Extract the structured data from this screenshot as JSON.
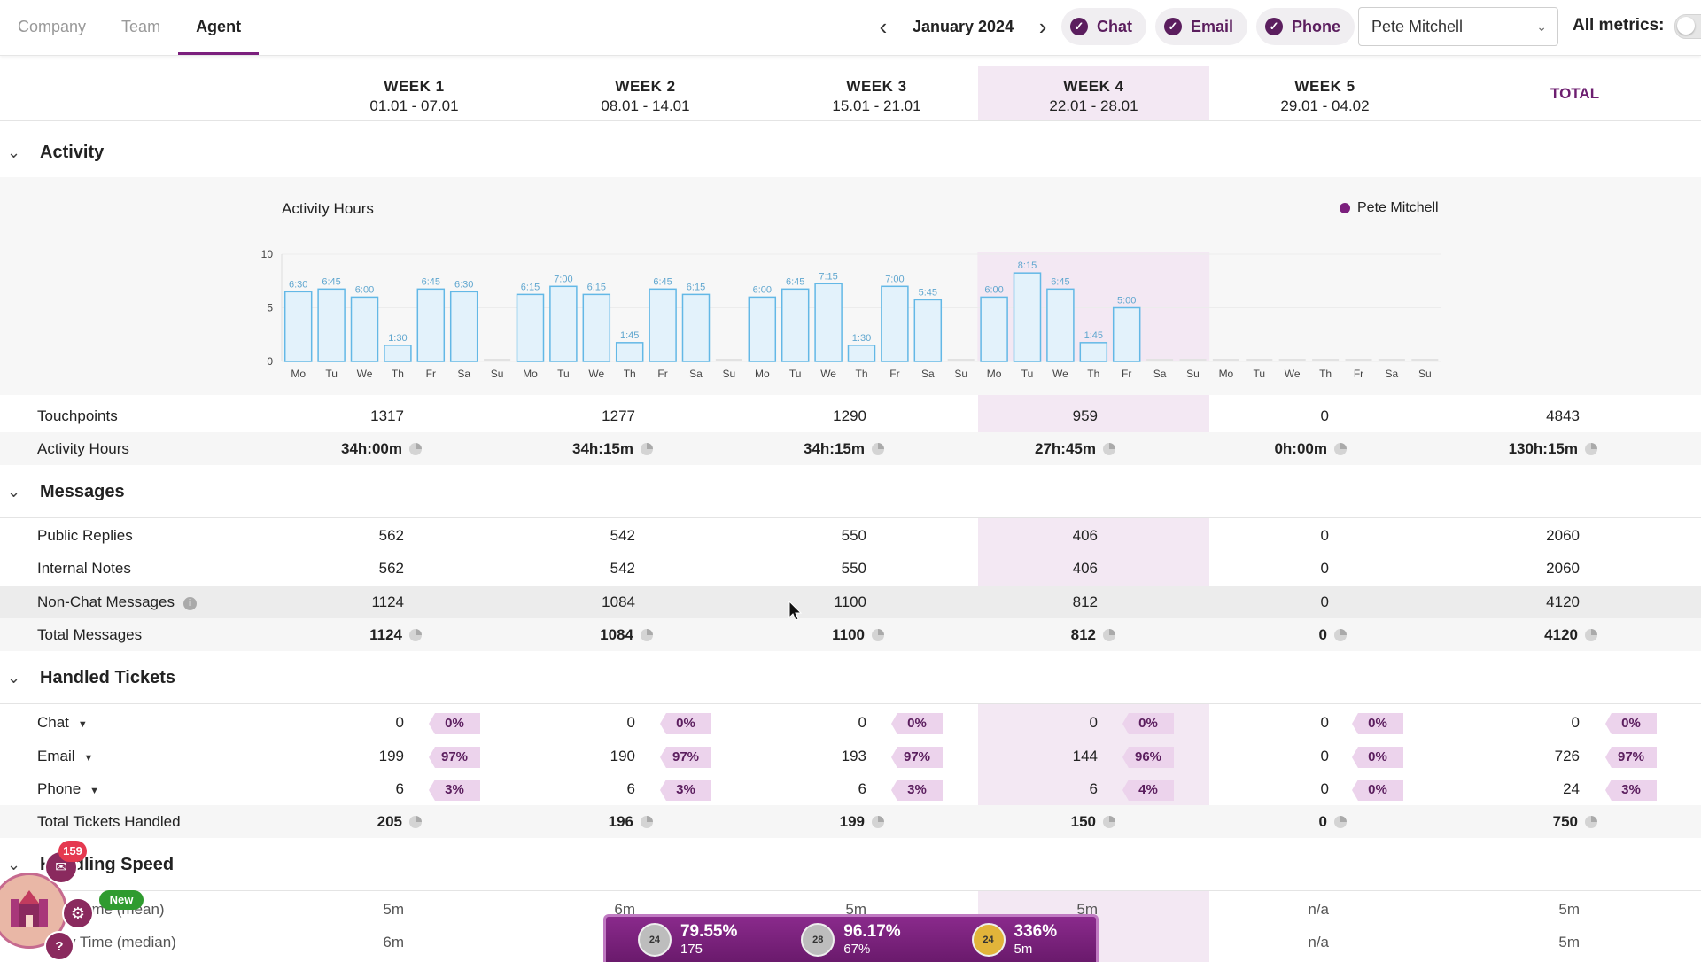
{
  "nav": {
    "tabs": [
      "Company",
      "Team",
      "Agent"
    ],
    "active_tab": "Agent",
    "month": "January 2024",
    "prev_icon": "chevron-left-icon",
    "next_icon": "chevron-right-icon"
  },
  "filters": {
    "channels": [
      {
        "label": "Chat",
        "checked": true
      },
      {
        "label": "Email",
        "checked": true
      },
      {
        "label": "Phone",
        "checked": true
      }
    ],
    "agent": "Pete Mitchell",
    "all_metrics_label": "All metrics:",
    "all_metrics_on": false
  },
  "weeks": [
    {
      "label": "WEEK 1",
      "range": "01.01 - 07.01"
    },
    {
      "label": "WEEK 2",
      "range": "08.01 - 14.01"
    },
    {
      "label": "WEEK 3",
      "range": "15.01 - 21.01"
    },
    {
      "label": "WEEK 4",
      "range": "22.01 - 28.01"
    },
    {
      "label": "WEEK 5",
      "range": "29.01 - 04.02"
    }
  ],
  "highlighted_week_index": 3,
  "total_label": "TOTAL",
  "sections": {
    "activity": "Activity",
    "messages": "Messages",
    "handled": "Handled Tickets",
    "speed": "Handling Speed"
  },
  "chart_data": {
    "type": "bar",
    "title": "Activity Hours",
    "legend": [
      "Pete Mitchell"
    ],
    "ylim": [
      0,
      10
    ],
    "yticks": [
      0,
      5,
      10
    ],
    "categories": [
      "Mo",
      "Tu",
      "We",
      "Th",
      "Fr",
      "Sa",
      "Su",
      "Mo",
      "Tu",
      "We",
      "Th",
      "Fr",
      "Sa",
      "Su",
      "Mo",
      "Tu",
      "We",
      "Th",
      "Fr",
      "Sa",
      "Su",
      "Mo",
      "Tu",
      "We",
      "Th",
      "Fr",
      "Sa",
      "Su",
      "Mo",
      "Tu",
      "We",
      "Th",
      "Fr",
      "Sa",
      "Su"
    ],
    "values": [
      6.5,
      6.75,
      6.0,
      1.5,
      6.75,
      6.5,
      0,
      6.25,
      7.0,
      6.25,
      1.75,
      6.75,
      6.25,
      0,
      6.0,
      6.75,
      7.25,
      1.5,
      7.0,
      5.75,
      0,
      6.0,
      8.25,
      6.75,
      1.75,
      5.0,
      0,
      0,
      0,
      0,
      0,
      0,
      0,
      0,
      0
    ],
    "data_labels": [
      "6:30",
      "6:45",
      "6:00",
      "1:30",
      "6:45",
      "6:30",
      "",
      "6:15",
      "7:00",
      "6:15",
      "1:45",
      "6:45",
      "6:15",
      "",
      "6:00",
      "6:45",
      "7:15",
      "1:30",
      "7:00",
      "5:45",
      "",
      "6:00",
      "8:15",
      "6:45",
      "1:45",
      "5:00",
      "",
      "",
      "",
      "",
      "",
      "",
      "",
      "",
      ""
    ]
  },
  "activity_rows": [
    {
      "label": "Touchpoints",
      "values": [
        "1317",
        "1277",
        "1290",
        "959",
        "0",
        "4843"
      ],
      "bold": false
    },
    {
      "label": "Activity Hours",
      "values": [
        "34h:00m",
        "34h:15m",
        "34h:15m",
        "27h:45m",
        "0h:00m",
        "130h:15m"
      ],
      "bold": true
    }
  ],
  "message_rows": [
    {
      "label": "Public Replies",
      "values": [
        "562",
        "542",
        "550",
        "406",
        "0",
        "2060"
      ],
      "bold": false
    },
    {
      "label": "Internal Notes",
      "values": [
        "562",
        "542",
        "550",
        "406",
        "0",
        "2060"
      ],
      "bold": false
    },
    {
      "label": "Non-Chat Messages",
      "values": [
        "1124",
        "1084",
        "1100",
        "812",
        "0",
        "4120"
      ],
      "bold": false
    },
    {
      "label": "Total Messages",
      "values": [
        "1124",
        "1084",
        "1100",
        "812",
        "0",
        "4120"
      ],
      "bold": true
    }
  ],
  "ticket_rows": [
    {
      "label": "Chat",
      "values": [
        "0",
        "0",
        "0",
        "0",
        "0",
        "0"
      ],
      "pcts": [
        "0%",
        "0%",
        "0%",
        "0%",
        "0%",
        "0%"
      ]
    },
    {
      "label": "Email",
      "values": [
        "199",
        "190",
        "193",
        "144",
        "0",
        "726"
      ],
      "pcts": [
        "97%",
        "97%",
        "97%",
        "96%",
        "0%",
        "97%"
      ]
    },
    {
      "label": "Phone",
      "values": [
        "6",
        "6",
        "6",
        "6",
        "0",
        "24"
      ],
      "pcts": [
        "3%",
        "3%",
        "3%",
        "4%",
        "0%",
        "3%"
      ]
    }
  ],
  "ticket_total": {
    "label": "Total Tickets Handled",
    "values": [
      "205",
      "196",
      "199",
      "150",
      "0",
      "750"
    ]
  },
  "speed_rows": [
    {
      "label": "Reply Time (mean)",
      "values": [
        "5m",
        "6m",
        "5m",
        "5m",
        "n/a",
        "5m"
      ]
    },
    {
      "label": "Reply Time (median)",
      "values": [
        "6m",
        "",
        "",
        "",
        "n/a",
        "5m"
      ]
    }
  ],
  "widget": {
    "count": "159",
    "new_label": "New"
  },
  "footer_stats": [
    {
      "badge": "24",
      "main": "79.55%",
      "sub": "175"
    },
    {
      "badge": "28",
      "main": "96.17%",
      "sub": "67%"
    },
    {
      "badge": "24",
      "main": "336%",
      "sub": "5m"
    }
  ]
}
